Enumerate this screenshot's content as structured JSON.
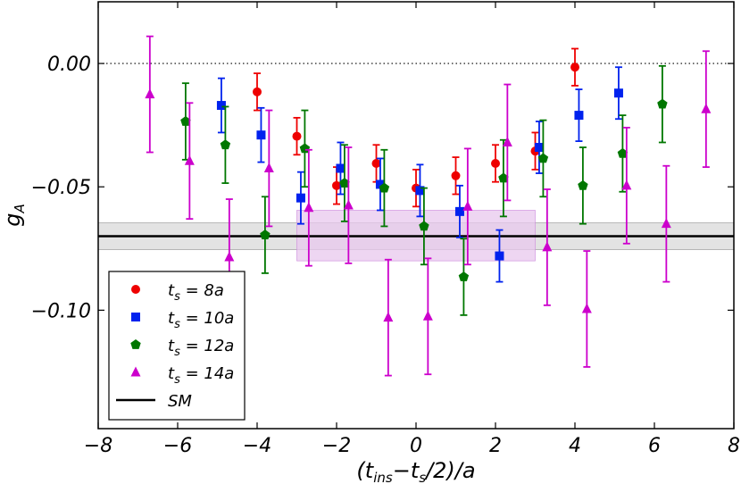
{
  "chart_data": {
    "type": "scatter",
    "title": "",
    "xlabel": "(t_ins − t_s/2)/a",
    "ylabel": "g_A",
    "xlim": [
      -8,
      8
    ],
    "ylim": [
      -0.148,
      0.025
    ],
    "x_ticks": [
      -8,
      -6,
      -4,
      -2,
      0,
      2,
      4,
      6,
      8
    ],
    "x_tick_labels": [
      "−8",
      "−6",
      "−4",
      "−2",
      "0",
      "2",
      "4",
      "6",
      "8"
    ],
    "y_ticks": [
      0.0,
      -0.05,
      -0.1
    ],
    "y_tick_labels": [
      "0.00",
      "−0.05",
      "−0.10"
    ],
    "reference_line": {
      "y": 0.0,
      "style": "dotted"
    },
    "sm": {
      "label": "SM",
      "value": -0.07,
      "band": [
        -0.0755,
        -0.0645
      ]
    },
    "fit_band": {
      "x": [
        -3,
        3
      ],
      "y": [
        -0.08,
        -0.0595
      ],
      "color": "#e8c8ee"
    },
    "legend_position": "lower-left",
    "series": [
      {
        "name": "t_s = 8a",
        "label_main": "t",
        "label_sub": "s",
        "label_rest": " = 8a",
        "color": "#ee0000",
        "marker": "circle",
        "x": [
          -4,
          -3,
          -2,
          -1,
          0,
          1,
          2,
          3,
          4
        ],
        "y": [
          -0.0115,
          -0.0295,
          -0.0495,
          -0.0405,
          -0.0505,
          -0.0455,
          -0.0405,
          -0.0355,
          -0.0015
        ],
        "err": [
          0.0075,
          0.0075,
          0.0075,
          0.0075,
          0.0075,
          0.0075,
          0.0075,
          0.0075,
          0.0075
        ]
      },
      {
        "name": "t_s = 10a",
        "label_main": "t",
        "label_sub": "s",
        "label_rest": " = 10a",
        "color": "#0022ee",
        "marker": "square",
        "x": [
          -4.9,
          -3.9,
          -2.9,
          -1.9,
          -0.9,
          0.1,
          1.1,
          2.1,
          3.1,
          4.1,
          5.1
        ],
        "y": [
          -0.017,
          -0.029,
          -0.0545,
          -0.0425,
          -0.049,
          -0.0515,
          -0.06,
          -0.078,
          -0.034,
          -0.021,
          -0.012
        ],
        "err": [
          0.011,
          0.011,
          0.0105,
          0.0105,
          0.0105,
          0.0105,
          0.0105,
          0.0105,
          0.0105,
          0.0105,
          0.0105
        ]
      },
      {
        "name": "t_s = 12a",
        "label_main": "t",
        "label_sub": "s",
        "label_rest": " = 12a",
        "color": "#007700",
        "marker": "pentagon",
        "x": [
          -5.8,
          -4.8,
          -3.8,
          -2.8,
          -1.8,
          -0.8,
          0.2,
          1.2,
          2.2,
          3.2,
          4.2,
          5.2,
          6.2
        ],
        "y": [
          -0.0235,
          -0.033,
          -0.0695,
          -0.0345,
          -0.0485,
          -0.0505,
          -0.066,
          -0.0865,
          -0.0465,
          -0.0385,
          -0.0495,
          -0.0365,
          -0.0165
        ],
        "err": [
          0.0155,
          0.0155,
          0.0155,
          0.0155,
          0.0155,
          0.0155,
          0.0155,
          0.0155,
          0.0155,
          0.0155,
          0.0155,
          0.0155,
          0.0155
        ]
      },
      {
        "name": "t_s = 14a",
        "label_main": "t",
        "label_sub": "s",
        "label_rest": " = 14a",
        "color": "#cc00cc",
        "marker": "triangle",
        "x": [
          -6.7,
          -5.7,
          -4.7,
          -3.7,
          -2.7,
          -1.7,
          -0.7,
          0.3,
          1.3,
          2.3,
          3.3,
          4.3,
          5.3,
          6.3,
          7.3
        ],
        "y": [
          -0.0125,
          -0.0395,
          -0.0785,
          -0.0425,
          -0.0585,
          -0.0575,
          -0.103,
          -0.1025,
          -0.058,
          -0.032,
          -0.0745,
          -0.0995,
          -0.0495,
          -0.065,
          -0.0185
        ],
        "err": [
          0.0235,
          0.0235,
          0.0235,
          0.0235,
          0.0235,
          0.0235,
          0.0235,
          0.0235,
          0.0235,
          0.0235,
          0.0235,
          0.0235,
          0.0235,
          0.0235,
          0.0235
        ]
      }
    ]
  }
}
